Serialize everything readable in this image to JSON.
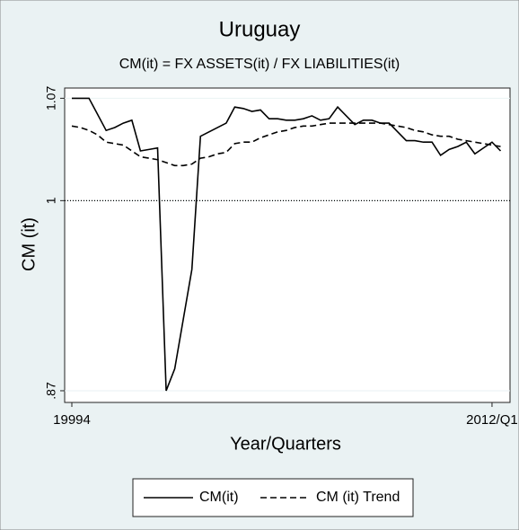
{
  "chart_data": {
    "type": "line",
    "title": "Uruguay",
    "subtitle": "CM(it) = FX ASSETS(it) / FX LIABILITIES(it)",
    "x_label": "Year/Quarters",
    "y_label": "CM (it)",
    "categories": [
      "19994",
      null,
      null,
      null,
      null,
      null,
      null,
      null,
      null,
      null,
      null,
      null,
      null,
      null,
      null,
      null,
      null,
      null,
      null,
      null,
      null,
      null,
      null,
      null,
      null,
      null,
      null,
      null,
      null,
      null,
      null,
      null,
      null,
      null,
      null,
      null,
      null,
      null,
      null,
      null,
      null,
      null,
      null,
      null,
      null,
      null,
      null,
      null,
      null,
      "2012/Q1",
      null
    ],
    "series": [
      {
        "name": "CM(it)",
        "color": "#000000",
        "dash": "solid",
        "values": [
          1.07,
          1.07,
          1.07,
          1.059,
          1.048,
          1.05,
          1.053,
          1.055,
          1.034,
          1.035,
          1.036,
          0.87,
          0.885,
          0.919,
          0.953,
          1.044,
          1.047,
          1.05,
          1.053,
          1.064,
          1.063,
          1.061,
          1.062,
          1.056,
          1.056,
          1.055,
          1.055,
          1.056,
          1.058,
          1.055,
          1.056,
          1.064,
          1.058,
          1.052,
          1.055,
          1.055,
          1.053,
          1.053,
          1.047,
          1.041,
          1.041,
          1.04,
          1.04,
          1.031,
          1.035,
          1.037,
          1.04,
          1.032,
          1.036,
          1.04,
          1.034
        ]
      },
      {
        "name": "CM (it) Trend",
        "color": "#000000",
        "dash": "dashed",
        "values": [
          1.051,
          1.05,
          1.048,
          1.045,
          1.04,
          1.039,
          1.038,
          1.034,
          1.03,
          1.029,
          1.028,
          1.026,
          1.024,
          1.024,
          1.025,
          1.029,
          1.03,
          1.032,
          1.033,
          1.039,
          1.04,
          1.04,
          1.043,
          1.045,
          1.047,
          1.048,
          1.05,
          1.051,
          1.051,
          1.052,
          1.053,
          1.053,
          1.053,
          1.053,
          1.053,
          1.053,
          1.053,
          1.052,
          1.051,
          1.05,
          1.048,
          1.047,
          1.045,
          1.044,
          1.044,
          1.042,
          1.041,
          1.04,
          1.039,
          1.038,
          1.037
        ]
      }
    ],
    "ylim": [
      0.862,
      1.077
    ],
    "yticks": [
      1.07,
      1,
      {
        "value": 0.87,
        "label": ".87"
      }
    ],
    "reference_line": 1,
    "grid": true,
    "legend": "bottom"
  }
}
